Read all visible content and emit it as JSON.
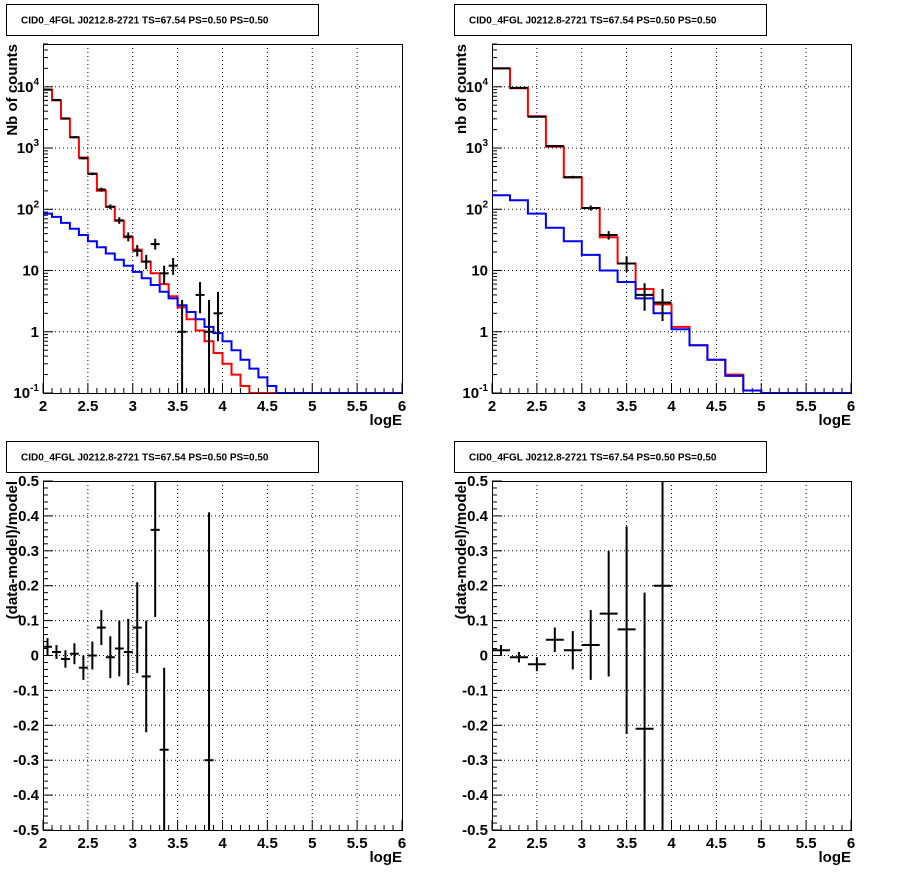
{
  "chart_data": [
    {
      "type": "step",
      "panel": "top-left",
      "title": "CID0_4FGL J0212.8-2721 TS=67.54 PS=0.50 PS=0.50",
      "xlabel": "logE",
      "ylabel": "Nb of counts",
      "xlim": [
        2,
        6
      ],
      "ylim": [
        0.1,
        50000
      ],
      "y_scale": "log",
      "grid": true,
      "x_ticks": [
        "2",
        "2.5",
        "3",
        "3.5",
        "4",
        "4.5",
        "5",
        "5.5",
        "6"
      ],
      "y_ticks": [
        "10^{-1}",
        "1",
        "10",
        "10^{2}",
        "10^{3}",
        "10^{4}"
      ],
      "bin_edges": [
        2.0,
        2.1,
        2.2,
        2.3,
        2.4,
        2.5,
        2.6,
        2.7,
        2.8,
        2.9,
        3.0,
        3.1,
        3.2,
        3.3,
        3.4,
        3.5,
        3.6,
        3.7,
        3.8,
        3.9,
        4.0,
        4.1,
        4.2,
        4.3,
        4.4,
        4.5,
        4.6,
        4.7,
        4.8,
        4.9,
        5.0,
        5.1,
        5.2,
        5.3,
        5.4,
        5.5,
        5.6,
        5.7,
        5.8,
        5.9,
        6.0
      ],
      "series": [
        {
          "color": "#ff0000",
          "values": [
            9000,
            6000,
            3000,
            1500,
            700,
            380,
            200,
            110,
            65,
            35,
            22,
            14,
            9,
            6,
            3.8,
            2.5,
            1.6,
            1.05,
            0.7,
            0.45,
            0.3,
            0.2,
            0.13,
            0.1,
            0.1,
            0.1,
            0.1,
            0.1,
            0.1,
            0.1,
            0.1,
            0.1,
            0.1,
            0.1,
            0.1,
            0.1,
            0.1,
            0.1,
            0.1,
            0.1
          ]
        },
        {
          "color": "#0000ff",
          "values": [
            85,
            75,
            60,
            48,
            38,
            30,
            24,
            19,
            15,
            12,
            9.5,
            7.5,
            5.8,
            4.5,
            3.5,
            2.7,
            2.1,
            1.6,
            1.2,
            0.95,
            0.7,
            0.5,
            0.35,
            0.25,
            0.18,
            0.13,
            0.1,
            0.1,
            0.1,
            0.1,
            0.1,
            0.1,
            0.1,
            0.1,
            0.1,
            0.1,
            0.1,
            0.1,
            0.1,
            0.1
          ]
        }
      ],
      "data_points": [
        {
          "x": 2.05,
          "y": 9000,
          "ylo": 8800,
          "yhi": 9200
        },
        {
          "x": 2.15,
          "y": 6100,
          "ylo": 5950,
          "yhi": 6250
        },
        {
          "x": 2.25,
          "y": 3050,
          "ylo": 2950,
          "yhi": 3150
        },
        {
          "x": 2.35,
          "y": 1500,
          "ylo": 1450,
          "yhi": 1560
        },
        {
          "x": 2.45,
          "y": 680,
          "ylo": 650,
          "yhi": 710
        },
        {
          "x": 2.55,
          "y": 380,
          "ylo": 360,
          "yhi": 400
        },
        {
          "x": 2.65,
          "y": 210,
          "ylo": 195,
          "yhi": 225
        },
        {
          "x": 2.75,
          "y": 110,
          "ylo": 100,
          "yhi": 120
        },
        {
          "x": 2.85,
          "y": 66,
          "ylo": 58,
          "yhi": 74
        },
        {
          "x": 2.95,
          "y": 36,
          "ylo": 30,
          "yhi": 42
        },
        {
          "x": 3.05,
          "y": 21,
          "ylo": 17,
          "yhi": 26
        },
        {
          "x": 3.15,
          "y": 14,
          "ylo": 10.5,
          "yhi": 18
        },
        {
          "x": 3.25,
          "y": 27,
          "ylo": 22,
          "yhi": 33
        },
        {
          "x": 3.35,
          "y": 9,
          "ylo": 6,
          "yhi": 12
        },
        {
          "x": 3.45,
          "y": 12,
          "ylo": 8.5,
          "yhi": 16
        },
        {
          "x": 3.55,
          "y": 1,
          "ylo": 0.1,
          "yhi": 3.3
        },
        {
          "x": 3.75,
          "y": 4,
          "ylo": 2,
          "yhi": 6.5
        },
        {
          "x": 3.85,
          "y": 1,
          "ylo": 0.1,
          "yhi": 3.3
        },
        {
          "x": 3.95,
          "y": 2,
          "ylo": 0.7,
          "yhi": 4.5
        }
      ]
    },
    {
      "type": "step",
      "panel": "top-right",
      "title": "CID0_4FGL J0212.8-2721 TS=67.54 PS=0.50 PS=0.50",
      "xlabel": "logE",
      "ylabel": "nb of counts",
      "xlim": [
        2,
        6
      ],
      "ylim": [
        0.1,
        50000
      ],
      "y_scale": "log",
      "grid": true,
      "x_ticks": [
        "2",
        "2.5",
        "3",
        "3.5",
        "4",
        "4.5",
        "5",
        "5.5",
        "6"
      ],
      "y_ticks": [
        "10^{-1}",
        "1",
        "10",
        "10^{2}",
        "10^{3}",
        "10^{4}"
      ],
      "bin_edges": [
        2.0,
        2.2,
        2.4,
        2.6,
        2.8,
        3.0,
        3.2,
        3.4,
        3.6,
        3.8,
        4.0,
        4.2,
        4.4,
        4.6,
        4.8,
        5.0,
        5.2,
        5.4,
        5.6,
        5.8,
        6.0
      ],
      "series": [
        {
          "color": "#ff0000",
          "values": [
            20000,
            9500,
            3300,
            1050,
            330,
            105,
            35,
            13,
            5,
            2.8,
            1.2,
            0.6,
            0.35,
            0.2,
            0.11,
            0.1,
            0.1,
            0.1,
            0.1,
            0.1
          ]
        },
        {
          "color": "#0000ff",
          "values": [
            170,
            140,
            85,
            50,
            30,
            18,
            10,
            6.5,
            3.5,
            2,
            1.1,
            0.6,
            0.35,
            0.19,
            0.11,
            0.1,
            0.1,
            0.1,
            0.1,
            0.1
          ]
        }
      ],
      "data_points": [
        {
          "x": 2.1,
          "y": 20000,
          "ylo": 19800,
          "yhi": 20200
        },
        {
          "x": 2.3,
          "y": 9600,
          "ylo": 9450,
          "yhi": 9750
        },
        {
          "x": 2.5,
          "y": 3250,
          "ylo": 3150,
          "yhi": 3350
        },
        {
          "x": 2.7,
          "y": 1080,
          "ylo": 1040,
          "yhi": 1120
        },
        {
          "x": 2.9,
          "y": 335,
          "ylo": 318,
          "yhi": 352
        },
        {
          "x": 3.1,
          "y": 105,
          "ylo": 95,
          "yhi": 115
        },
        {
          "x": 3.3,
          "y": 38,
          "ylo": 32,
          "yhi": 44
        },
        {
          "x": 3.5,
          "y": 13,
          "ylo": 9.5,
          "yhi": 17
        },
        {
          "x": 3.7,
          "y": 4,
          "ylo": 2.2,
          "yhi": 6.2
        },
        {
          "x": 3.9,
          "y": 3,
          "ylo": 1.5,
          "yhi": 5
        }
      ]
    },
    {
      "type": "scatter",
      "panel": "bottom-left",
      "title": "CID0_4FGL J0212.8-2721 TS=67.54 PS=0.50 PS=0.50",
      "xlabel": "logE",
      "ylabel": "(data-model)/model",
      "xlim": [
        2,
        6
      ],
      "ylim": [
        -0.5,
        0.5
      ],
      "grid": true,
      "x_ticks": [
        "2",
        "2.5",
        "3",
        "3.5",
        "4",
        "4.5",
        "5",
        "5.5",
        "6"
      ],
      "y_ticks": [
        "-0.5",
        "-0.4",
        "-0.3",
        "-0.2",
        "-0.1",
        "0",
        "0.1",
        "0.2",
        "0.3",
        "0.4",
        "0.5"
      ],
      "points": [
        {
          "x": 2.05,
          "y": 0.025,
          "ylo": 0.0,
          "yhi": 0.05,
          "dx": 0.05
        },
        {
          "x": 2.15,
          "y": 0.01,
          "ylo": -0.01,
          "yhi": 0.03,
          "dx": 0.05
        },
        {
          "x": 2.25,
          "y": -0.01,
          "ylo": -0.035,
          "yhi": 0.015,
          "dx": 0.05
        },
        {
          "x": 2.35,
          "y": 0.005,
          "ylo": -0.025,
          "yhi": 0.035,
          "dx": 0.05
        },
        {
          "x": 2.45,
          "y": -0.035,
          "ylo": -0.07,
          "yhi": 0.0,
          "dx": 0.05
        },
        {
          "x": 2.55,
          "y": 0.0,
          "ylo": -0.04,
          "yhi": 0.04,
          "dx": 0.05
        },
        {
          "x": 2.65,
          "y": 0.08,
          "ylo": 0.03,
          "yhi": 0.13,
          "dx": 0.05
        },
        {
          "x": 2.75,
          "y": -0.005,
          "ylo": -0.065,
          "yhi": 0.055,
          "dx": 0.05
        },
        {
          "x": 2.85,
          "y": 0.02,
          "ylo": -0.06,
          "yhi": 0.1,
          "dx": 0.05
        },
        {
          "x": 2.95,
          "y": 0.01,
          "ylo": -0.085,
          "yhi": 0.105,
          "dx": 0.05
        },
        {
          "x": 3.05,
          "y": 0.08,
          "ylo": -0.05,
          "yhi": 0.21,
          "dx": 0.05
        },
        {
          "x": 3.15,
          "y": -0.06,
          "ylo": -0.22,
          "yhi": 0.1,
          "dx": 0.05
        },
        {
          "x": 3.25,
          "y": 0.36,
          "ylo": 0.11,
          "yhi": 0.5,
          "dx": 0.05
        },
        {
          "x": 3.35,
          "y": -0.27,
          "ylo": -0.5,
          "yhi": -0.035,
          "dx": 0.05
        },
        {
          "x": 3.85,
          "y": -0.3,
          "ylo": -0.5,
          "yhi": 0.41,
          "dx": 0.05
        }
      ]
    },
    {
      "type": "scatter",
      "panel": "bottom-right",
      "title": "CID0_4FGL J0212.8-2721 TS=67.54 PS=0.50 PS=0.50",
      "xlabel": "logE",
      "ylabel": "(data-model)/model",
      "xlim": [
        2,
        6
      ],
      "ylim": [
        -0.5,
        0.5
      ],
      "grid": true,
      "x_ticks": [
        "2",
        "2.5",
        "3",
        "3.5",
        "4",
        "4.5",
        "5",
        "5.5",
        "6"
      ],
      "y_ticks": [
        "-0.5",
        "-0.4",
        "-0.3",
        "-0.2",
        "-0.1",
        "0",
        "0.1",
        "0.2",
        "0.3",
        "0.4",
        "0.5"
      ],
      "points": [
        {
          "x": 2.1,
          "y": 0.015,
          "ylo": 0.0,
          "yhi": 0.03,
          "dx": 0.1
        },
        {
          "x": 2.3,
          "y": -0.005,
          "ylo": -0.02,
          "yhi": 0.01,
          "dx": 0.1
        },
        {
          "x": 2.5,
          "y": -0.025,
          "ylo": -0.045,
          "yhi": -0.005,
          "dx": 0.1
        },
        {
          "x": 2.7,
          "y": 0.045,
          "ylo": 0.01,
          "yhi": 0.08,
          "dx": 0.1
        },
        {
          "x": 2.9,
          "y": 0.015,
          "ylo": -0.04,
          "yhi": 0.07,
          "dx": 0.1
        },
        {
          "x": 3.1,
          "y": 0.03,
          "ylo": -0.07,
          "yhi": 0.13,
          "dx": 0.1
        },
        {
          "x": 3.3,
          "y": 0.12,
          "ylo": -0.06,
          "yhi": 0.3,
          "dx": 0.1
        },
        {
          "x": 3.5,
          "y": 0.075,
          "ylo": -0.225,
          "yhi": 0.37,
          "dx": 0.1
        },
        {
          "x": 3.7,
          "y": -0.21,
          "ylo": -0.5,
          "yhi": 0.18,
          "dx": 0.1
        },
        {
          "x": 3.9,
          "y": 0.2,
          "ylo": -0.5,
          "yhi": 0.5,
          "dx": 0.1
        }
      ]
    }
  ]
}
